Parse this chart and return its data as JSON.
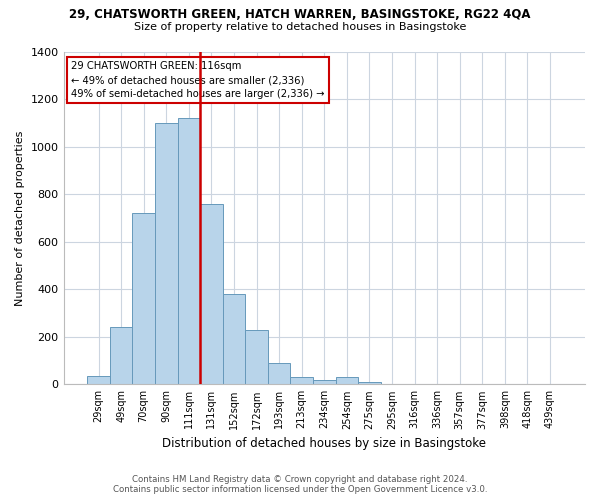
{
  "title": "29, CHATSWORTH GREEN, HATCH WARREN, BASINGSTOKE, RG22 4QA",
  "subtitle": "Size of property relative to detached houses in Basingstoke",
  "xlabel": "Distribution of detached houses by size in Basingstoke",
  "ylabel": "Number of detached properties",
  "bar_labels": [
    "29sqm",
    "49sqm",
    "70sqm",
    "90sqm",
    "111sqm",
    "131sqm",
    "152sqm",
    "172sqm",
    "193sqm",
    "213sqm",
    "234sqm",
    "254sqm",
    "275sqm",
    "295sqm",
    "316sqm",
    "336sqm",
    "357sqm",
    "377sqm",
    "398sqm",
    "418sqm",
    "439sqm"
  ],
  "bar_values": [
    35,
    240,
    720,
    1100,
    1120,
    760,
    380,
    230,
    90,
    30,
    20,
    30,
    10,
    0,
    0,
    0,
    0,
    0,
    0,
    0,
    0
  ],
  "bar_color": "#b8d4ea",
  "bar_edge_color": "#6699bb",
  "vline_x_index": 5,
  "vline_color": "#cc0000",
  "annotation_title": "29 CHATSWORTH GREEN: 116sqm",
  "annotation_line1": "← 49% of detached houses are smaller (2,336)",
  "annotation_line2": "49% of semi-detached houses are larger (2,336) →",
  "annotation_box_color": "#ffffff",
  "annotation_border_color": "#cc0000",
  "ylim": [
    0,
    1400
  ],
  "yticks": [
    0,
    200,
    400,
    600,
    800,
    1000,
    1200,
    1400
  ],
  "footer1": "Contains HM Land Registry data © Crown copyright and database right 2024.",
  "footer2": "Contains public sector information licensed under the Open Government Licence v3.0.",
  "bg_color": "#ffffff",
  "grid_color": "#ccd5e0"
}
